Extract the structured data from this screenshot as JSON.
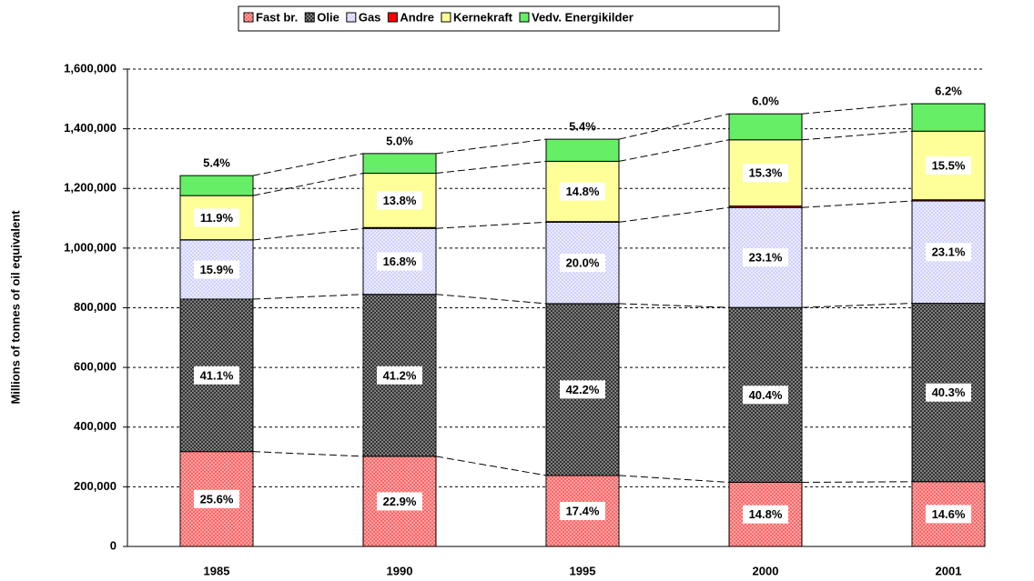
{
  "chart_data": {
    "type": "bar",
    "stacked": true,
    "ylabel": "Millions of tonnes of oil equivalent",
    "categories": [
      "1985",
      "1990",
      "1995",
      "2000",
      "2001"
    ],
    "series": [
      {
        "name": "Fast br.",
        "color": "#ff6666",
        "values": [
          318000,
          302000,
          238000,
          215000,
          217000
        ],
        "labels": [
          "25.6%",
          "22.9%",
          "17.4%",
          "14.8%",
          "14.6%"
        ]
      },
      {
        "name": "Olie",
        "color": "#333333",
        "values": [
          511000,
          543000,
          576000,
          586000,
          598000
        ],
        "labels": [
          "41.1%",
          "41.2%",
          "42.2%",
          "40.4%",
          "40.3%"
        ]
      },
      {
        "name": "Gas",
        "color": "#ccccff",
        "values": [
          198000,
          221000,
          273000,
          335000,
          343000
        ],
        "labels": [
          "15.9%",
          "16.8%",
          "20.0%",
          "23.1%",
          "23.1%"
        ]
      },
      {
        "name": "Andre",
        "color": "#ff0000",
        "values": [
          1000,
          3000,
          2000,
          5000,
          4000
        ]
      },
      {
        "name": "Kernekraft",
        "color": "#ffff99",
        "values": [
          148000,
          182000,
          202000,
          222000,
          230000
        ],
        "labels": [
          "11.9%",
          "13.8%",
          "14.8%",
          "15.3%",
          "15.5%"
        ]
      },
      {
        "name": "Vedv. Energikilder",
        "color": "#66ee66",
        "values": [
          67000,
          66000,
          74000,
          87000,
          92000
        ],
        "labels": [
          "5.4%",
          "5.0%",
          "5.4%",
          "6.0%",
          "6.2%"
        ]
      }
    ],
    "ylim": [
      0,
      1600000
    ],
    "yticks": [
      0,
      {
        "value": 200000,
        "label": "200,000"
      },
      {
        "value": 400000,
        "label": "400,000"
      },
      {
        "value": 600000,
        "label": "600,000"
      },
      {
        "value": 800000,
        "label": "800,000"
      },
      {
        "value": 1000000,
        "label": "1,000,000"
      },
      {
        "value": 1200000,
        "label": "1,200,000"
      },
      {
        "value": 1400000,
        "label": "1,400,000"
      },
      {
        "value": 1600000,
        "label": "1,600,000"
      }
    ],
    "grid": true,
    "legend": "top"
  }
}
